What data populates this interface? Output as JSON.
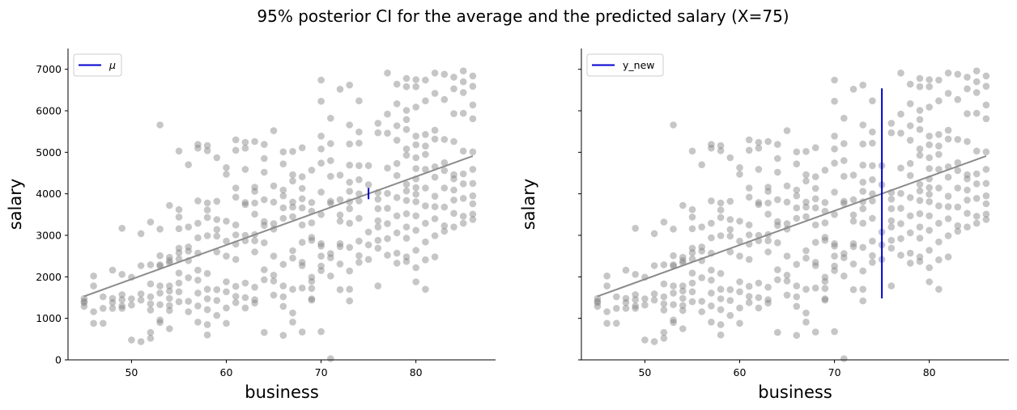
{
  "figure": {
    "title": "95% posterior CI for the average and the predicted salary (X=75)"
  },
  "chart_data": [
    {
      "type": "scatter",
      "xlabel": "business",
      "ylabel": "salary",
      "xlim": [
        43.3,
        88.4
      ],
      "ylim": [
        0,
        7500
      ],
      "xticks": [
        50,
        60,
        70,
        80
      ],
      "yticks": [
        0,
        1000,
        2000,
        3000,
        4000,
        5000,
        6000,
        7000
      ],
      "show_yticklabels": true,
      "grid": false,
      "legend": {
        "placement": "top-left",
        "label": "μ"
      },
      "regression_line": {
        "x": [
          45,
          86
        ],
        "y": [
          1530,
          4910
        ]
      },
      "interval": {
        "x": 75,
        "low": 3870,
        "high": 4140
      },
      "colors": {
        "points": "#808080",
        "line": "#8c8c8c",
        "interval": "#0000cc"
      }
    },
    {
      "type": "scatter",
      "xlabel": "business",
      "ylabel": "salary",
      "xlim": [
        43.3,
        88.4
      ],
      "ylim": [
        0,
        7500
      ],
      "xticks": [
        50,
        60,
        70,
        80
      ],
      "yticks": [
        0,
        1000,
        2000,
        3000,
        4000,
        5000,
        6000,
        7000
      ],
      "show_yticklabels": false,
      "grid": false,
      "legend": {
        "placement": "top-left",
        "label": "y_new"
      },
      "regression_line": {
        "x": [
          45,
          86
        ],
        "y": [
          1530,
          4910
        ]
      },
      "interval": {
        "x": 75,
        "low": 1480,
        "high": 6540
      },
      "colors": {
        "points": "#808080",
        "line": "#8c8c8c",
        "interval": "#0000cc"
      }
    }
  ],
  "points": [
    [
      45,
      1480
    ],
    [
      45,
      1380
    ],
    [
      45,
      1290
    ],
    [
      46,
      2020
    ],
    [
      46,
      1780
    ],
    [
      46,
      1160
    ],
    [
      46,
      880
    ],
    [
      47,
      1520
    ],
    [
      47,
      1240
    ],
    [
      47,
      880
    ],
    [
      48,
      2160
    ],
    [
      48,
      1480
    ],
    [
      48,
      1380
    ],
    [
      48,
      1240
    ],
    [
      49,
      3170
    ],
    [
      49,
      2060
    ],
    [
      49,
      1570
    ],
    [
      49,
      1450
    ],
    [
      49,
      1240
    ],
    [
      50,
      1990
    ],
    [
      50,
      1470
    ],
    [
      50,
      1320
    ],
    [
      50,
      480
    ],
    [
      51,
      3040
    ],
    [
      51,
      1590
    ],
    [
      51,
      1440
    ],
    [
      51,
      440
    ],
    [
      52,
      3320
    ],
    [
      52,
      2290
    ],
    [
      52,
      1830
    ],
    [
      52,
      1520
    ],
    [
      52,
      1350
    ],
    [
      52,
      1200
    ],
    [
      52,
      660
    ],
    [
      52,
      520
    ],
    [
      53,
      5660
    ],
    [
      53,
      3150
    ],
    [
      53,
      2510
    ],
    [
      53,
      2290
    ],
    [
      53,
      2260
    ],
    [
      53,
      1780
    ],
    [
      53,
      1610
    ],
    [
      53,
      1330
    ],
    [
      53,
      960
    ],
    [
      53,
      900
    ],
    [
      54,
      3720
    ],
    [
      54,
      2470
    ],
    [
      54,
      2390
    ],
    [
      54,
      2340
    ],
    [
      54,
      1780
    ],
    [
      54,
      1660
    ],
    [
      54,
      1480
    ],
    [
      54,
      1310
    ],
    [
      54,
      1190
    ],
    [
      54,
      750
    ],
    [
      55,
      5030
    ],
    [
      55,
      3620
    ],
    [
      55,
      3440
    ],
    [
      55,
      3160
    ],
    [
      55,
      2690
    ],
    [
      55,
      2580
    ],
    [
      55,
      2430
    ],
    [
      55,
      2090
    ],
    [
      55,
      1850
    ],
    [
      55,
      1640
    ],
    [
      55,
      1400
    ],
    [
      56,
      4700
    ],
    [
      56,
      3200
    ],
    [
      56,
      2720
    ],
    [
      56,
      2620
    ],
    [
      56,
      1980
    ],
    [
      56,
      1410
    ],
    [
      56,
      1160
    ],
    [
      57,
      5190
    ],
    [
      57,
      5100
    ],
    [
      57,
      3830
    ],
    [
      57,
      3290
    ],
    [
      57,
      2940
    ],
    [
      57,
      2570
    ],
    [
      57,
      2160
    ],
    [
      57,
      1920
    ],
    [
      57,
      1610
    ],
    [
      57,
      1300
    ],
    [
      57,
      910
    ],
    [
      58,
      5160
    ],
    [
      58,
      5040
    ],
    [
      58,
      3780
    ],
    [
      58,
      3610
    ],
    [
      58,
      3430
    ],
    [
      58,
      2990
    ],
    [
      58,
      2080
    ],
    [
      58,
      1700
    ],
    [
      58,
      1470
    ],
    [
      58,
      1210
    ],
    [
      58,
      850
    ],
    [
      58,
      600
    ],
    [
      59,
      4870
    ],
    [
      59,
      3820
    ],
    [
      59,
      3380
    ],
    [
      59,
      3140
    ],
    [
      59,
      2600
    ],
    [
      59,
      1690
    ],
    [
      59,
      1430
    ],
    [
      59,
      1070
    ],
    [
      60,
      4630
    ],
    [
      60,
      4470
    ],
    [
      60,
      3340
    ],
    [
      60,
      2860
    ],
    [
      60,
      2500
    ],
    [
      60,
      1880
    ],
    [
      60,
      1640
    ],
    [
      60,
      1250
    ],
    [
      60,
      880
    ],
    [
      61,
      5300
    ],
    [
      61,
      5050
    ],
    [
      61,
      4140
    ],
    [
      61,
      3920
    ],
    [
      61,
      3250
    ],
    [
      61,
      3010
    ],
    [
      61,
      2790
    ],
    [
      61,
      2420
    ],
    [
      61,
      1770
    ],
    [
      61,
      1530
    ],
    [
      61,
      1380
    ],
    [
      62,
      5240
    ],
    [
      62,
      5100
    ],
    [
      62,
      4590
    ],
    [
      62,
      3790
    ],
    [
      62,
      3000
    ],
    [
      62,
      2870
    ],
    [
      62,
      1850
    ],
    [
      62,
      1500
    ],
    [
      62,
      1250
    ],
    [
      63,
      5260
    ],
    [
      63,
      4160
    ],
    [
      63,
      4060
    ],
    [
      63,
      3780
    ],
    [
      63,
      3510
    ],
    [
      63,
      2870
    ],
    [
      63,
      2600
    ],
    [
      63,
      1750
    ],
    [
      63,
      1450
    ],
    [
      63,
      1370
    ],
    [
      64,
      5190
    ],
    [
      64,
      4850
    ],
    [
      64,
      4520
    ],
    [
      64,
      3860
    ],
    [
      64,
      3330
    ],
    [
      64,
      3240
    ],
    [
      64,
      2820
    ],
    [
      64,
      2170
    ],
    [
      64,
      660
    ],
    [
      65,
      5520
    ],
    [
      65,
      4190
    ],
    [
      65,
      3800
    ],
    [
      65,
      3280
    ],
    [
      65,
      3150
    ],
    [
      65,
      2500
    ],
    [
      65,
      2040
    ],
    [
      65,
      1900
    ],
    [
      65,
      1560
    ],
    [
      66,
      5010
    ],
    [
      66,
      4720
    ],
    [
      66,
      4090
    ],
    [
      66,
      3950
    ],
    [
      66,
      3660
    ],
    [
      66,
      3410
    ],
    [
      66,
      2300
    ],
    [
      66,
      1780
    ],
    [
      66,
      1520
    ],
    [
      66,
      1290
    ],
    [
      66,
      590
    ],
    [
      67,
      5020
    ],
    [
      67,
      4460
    ],
    [
      67,
      4310
    ],
    [
      67,
      3800
    ],
    [
      67,
      3680
    ],
    [
      67,
      3450
    ],
    [
      67,
      2630
    ],
    [
      67,
      1700
    ],
    [
      67,
      1130
    ],
    [
      67,
      910
    ],
    [
      68,
      5110
    ],
    [
      68,
      4410
    ],
    [
      68,
      4130
    ],
    [
      68,
      3880
    ],
    [
      68,
      3660
    ],
    [
      68,
      3250
    ],
    [
      68,
      2350
    ],
    [
      68,
      2270
    ],
    [
      68,
      1730
    ],
    [
      68,
      670
    ],
    [
      69,
      4570
    ],
    [
      69,
      3790
    ],
    [
      69,
      3580
    ],
    [
      69,
      2950
    ],
    [
      69,
      2880
    ],
    [
      69,
      1990
    ],
    [
      69,
      1890
    ],
    [
      69,
      1720
    ],
    [
      69,
      1470
    ],
    [
      69,
      1440
    ],
    [
      70,
      6740
    ],
    [
      70,
      6230
    ],
    [
      70,
      5390
    ],
    [
      70,
      5080
    ],
    [
      70,
      4740
    ],
    [
      70,
      4040
    ],
    [
      70,
      3500
    ],
    [
      70,
      2800
    ],
    [
      70,
      2740
    ],
    [
      70,
      2500
    ],
    [
      70,
      2260
    ],
    [
      70,
      2150
    ],
    [
      70,
      680
    ],
    [
      71,
      5820
    ],
    [
      71,
      5210
    ],
    [
      71,
      4800
    ],
    [
      71,
      3820
    ],
    [
      71,
      3770
    ],
    [
      71,
      2560
    ],
    [
      71,
      2460
    ],
    [
      71,
      2020
    ],
    [
      71,
      30
    ],
    [
      72,
      6520
    ],
    [
      72,
      4450
    ],
    [
      72,
      3490
    ],
    [
      72,
      3340
    ],
    [
      72,
      2800
    ],
    [
      72,
      2730
    ],
    [
      72,
      2310
    ],
    [
      72,
      1690
    ],
    [
      73,
      6620
    ],
    [
      73,
      5660
    ],
    [
      73,
      5200
    ],
    [
      73,
      4690
    ],
    [
      73,
      4280
    ],
    [
      73,
      4060
    ],
    [
      73,
      3810
    ],
    [
      73,
      3640
    ],
    [
      73,
      3290
    ],
    [
      73,
      2710
    ],
    [
      73,
      2140
    ],
    [
      73,
      1700
    ],
    [
      74,
      6240
    ],
    [
      74,
      5490
    ],
    [
      74,
      5220
    ],
    [
      74,
      4680
    ],
    [
      74,
      4340
    ],
    [
      74,
      4000
    ],
    [
      74,
      3830
    ],
    [
      74,
      3410
    ],
    [
      74,
      2510
    ],
    [
      74,
      2350
    ],
    [
      75,
      4680
    ],
    [
      75,
      4220
    ],
    [
      75,
      3080
    ],
    [
      75,
      2770
    ],
    [
      75,
      2420
    ],
    [
      76,
      5700
    ],
    [
      76,
      5470
    ],
    [
      76,
      4030
    ],
    [
      76,
      3870
    ],
    [
      76,
      3640
    ],
    [
      76,
      3350
    ],
    [
      76,
      2880
    ],
    [
      76,
      2690
    ],
    [
      76,
      1780
    ],
    [
      77,
      6910
    ],
    [
      77,
      5920
    ],
    [
      77,
      5460
    ],
    [
      77,
      4620
    ],
    [
      77,
      4010
    ],
    [
      77,
      3650
    ],
    [
      77,
      3280
    ],
    [
      77,
      2920
    ],
    [
      77,
      2520
    ],
    [
      78,
      6640
    ],
    [
      78,
      6170
    ],
    [
      78,
      5640
    ],
    [
      78,
      5290
    ],
    [
      78,
      4730
    ],
    [
      78,
      4440
    ],
    [
      78,
      3910
    ],
    [
      78,
      3060
    ],
    [
      78,
      2570
    ],
    [
      78,
      2330
    ],
    [
      79,
      6780
    ],
    [
      79,
      6580
    ],
    [
      79,
      6010
    ],
    [
      79,
      5790
    ],
    [
      79,
      5550
    ],
    [
      79,
      5080
    ],
    [
      79,
      4930
    ],
    [
      79,
      4230
    ],
    [
      79,
      4070
    ],
    [
      79,
      3840
    ],
    [
      79,
      3520
    ],
    [
      79,
      3200
    ],
    [
      79,
      2930
    ],
    [
      79,
      2480
    ],
    [
      79,
      2370
    ],
    [
      80,
      6750
    ],
    [
      80,
      6580
    ],
    [
      80,
      6090
    ],
    [
      80,
      5390
    ],
    [
      80,
      5180
    ],
    [
      80,
      4870
    ],
    [
      80,
      4610
    ],
    [
      80,
      4360
    ],
    [
      80,
      4150
    ],
    [
      80,
      3810
    ],
    [
      80,
      3470
    ],
    [
      80,
      3120
    ],
    [
      80,
      2640
    ],
    [
      80,
      2220
    ],
    [
      80,
      1880
    ],
    [
      81,
      6740
    ],
    [
      81,
      6240
    ],
    [
      81,
      5430
    ],
    [
      81,
      5150
    ],
    [
      81,
      4950
    ],
    [
      81,
      4590
    ],
    [
      81,
      4140
    ],
    [
      81,
      3710
    ],
    [
      81,
      3290
    ],
    [
      81,
      2840
    ],
    [
      81,
      2410
    ],
    [
      81,
      1700
    ],
    [
      82,
      6910
    ],
    [
      82,
      6420
    ],
    [
      82,
      5530
    ],
    [
      82,
      5320
    ],
    [
      82,
      4650
    ],
    [
      82,
      4400
    ],
    [
      82,
      3940
    ],
    [
      82,
      3400
    ],
    [
      82,
      2990
    ],
    [
      82,
      2480
    ],
    [
      83,
      6880
    ],
    [
      83,
      6270
    ],
    [
      83,
      5310
    ],
    [
      83,
      4750
    ],
    [
      83,
      4560
    ],
    [
      83,
      4140
    ],
    [
      83,
      3680
    ],
    [
      83,
      3230
    ],
    [
      83,
      3100
    ],
    [
      84,
      6810
    ],
    [
      84,
      6530
    ],
    [
      84,
      5930
    ],
    [
      84,
      5260
    ],
    [
      84,
      4460
    ],
    [
      84,
      4090
    ],
    [
      84,
      3850
    ],
    [
      84,
      3530
    ],
    [
      84,
      3200
    ],
    [
      85,
      6960
    ],
    [
      85,
      6700
    ],
    [
      85,
      6440
    ],
    [
      85,
      5940
    ],
    [
      85,
      5030
    ],
    [
      85,
      4480
    ],
    [
      85,
      4240
    ],
    [
      85,
      3890
    ],
    [
      85,
      3460
    ],
    [
      85,
      3290
    ],
    [
      86,
      6840
    ],
    [
      86,
      6590
    ],
    [
      86,
      6140
    ],
    [
      86,
      5810
    ],
    [
      86,
      5010
    ],
    [
      86,
      4590
    ],
    [
      86,
      4250
    ],
    [
      86,
      3950
    ],
    [
      86,
      3760
    ],
    [
      86,
      3510
    ],
    [
      86,
      3380
    ],
    [
      45,
      1410
    ],
    [
      49,
      1300
    ],
    [
      51,
      2270
    ],
    [
      56,
      2390
    ],
    [
      59,
      2980
    ],
    [
      62,
      3740
    ],
    [
      63,
      3020
    ],
    [
      64,
      1930
    ],
    [
      67,
      2450
    ],
    [
      68,
      2830
    ],
    [
      69,
      3300
    ],
    [
      71,
      4420
    ],
    [
      72,
      3860
    ],
    [
      73,
      1420
    ],
    [
      74,
      2860
    ],
    [
      76,
      3200
    ],
    [
      78,
      3470
    ],
    [
      80,
      3990
    ],
    [
      82,
      3690
    ],
    [
      84,
      4360
    ]
  ]
}
